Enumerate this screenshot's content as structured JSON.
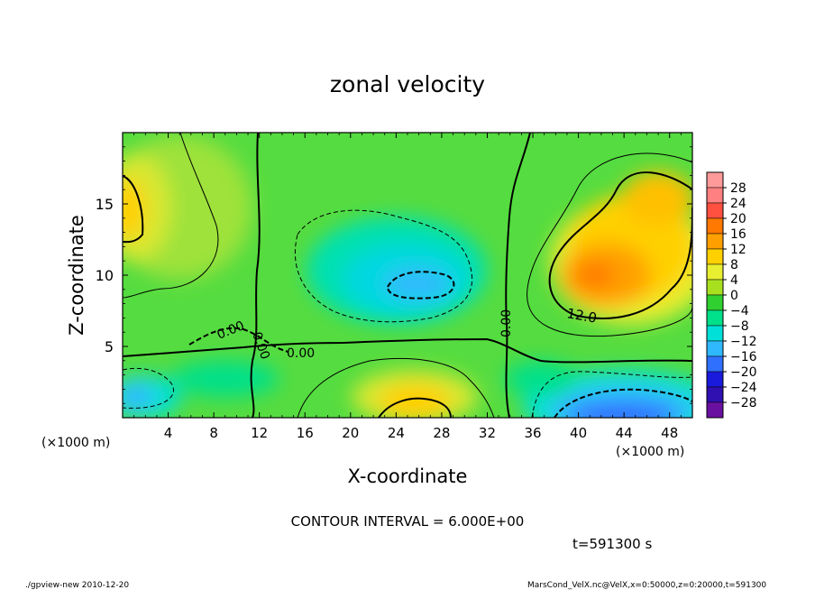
{
  "chart_data": {
    "type": "heatmap",
    "title": "zonal velocity",
    "xlabel": "X-coordinate",
    "ylabel": "Z-coordinate",
    "x_unit_left": "(×1000 m)",
    "x_unit_right": "(×1000 m)",
    "x_ticks": [
      4,
      8,
      12,
      16,
      20,
      24,
      28,
      32,
      36,
      40,
      44,
      48
    ],
    "y_ticks": [
      5,
      10,
      15
    ],
    "xlim": [
      0,
      50
    ],
    "ylim": [
      0,
      20
    ],
    "colorbar": {
      "levels": [
        28,
        24,
        20,
        16,
        12,
        8,
        4,
        0,
        -4,
        -8,
        -12,
        -16,
        -20,
        -24,
        -28
      ],
      "tick_labels": [
        "28",
        "24",
        "20",
        "16",
        "12",
        "8",
        "4",
        "0",
        "−4",
        "−8",
        "−12",
        "−16",
        "−20",
        "−24",
        "−28"
      ],
      "colors": [
        "#ff8080",
        "#ff5040",
        "#ff7800",
        "#ffa000",
        "#ffd000",
        "#e8ee30",
        "#a8e020",
        "#30d030",
        "#00e08a",
        "#00e0d8",
        "#30b8ff",
        "#3070ff",
        "#1a1adc",
        "#3010b0",
        "#6a10a0"
      ]
    },
    "contour_labels": [
      "0.00",
      "0.00",
      "0.00",
      "0.00",
      "12.0"
    ],
    "features": [
      {
        "name": "upper-right maximum",
        "x": 41.5,
        "z": 9.8,
        "value": 18
      },
      {
        "name": "lower-right minimum",
        "x": 43,
        "z": 1.0,
        "value": -18
      },
      {
        "name": "center minimum",
        "x": 25,
        "z": 9.2,
        "value": -11
      },
      {
        "name": "upper-left maximum",
        "x": 1,
        "z": 14,
        "value": 13
      },
      {
        "name": "lower-center maximum",
        "x": 26,
        "z": 1.2,
        "value": 14
      },
      {
        "name": "lower-left minimum",
        "x": 1.2,
        "z": 1.5,
        "value": -10
      }
    ],
    "contour_interval_text": "CONTOUR INTERVAL = 6.000E+00",
    "time_text": "t=591300 s"
  },
  "footer": {
    "left": "./gpview-new  2010-12-20",
    "right": "MarsCond_VelX.nc@VelX,x=0:50000,z=0:20000,t=591300"
  }
}
